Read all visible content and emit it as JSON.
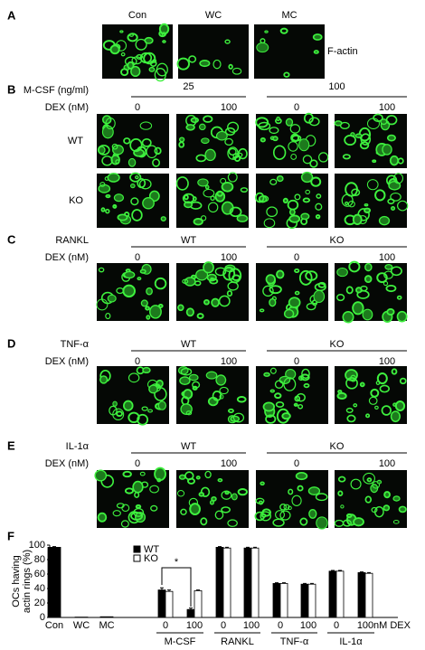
{
  "panels": [
    {
      "label": "A",
      "columns": [
        "Con",
        "WC",
        "MC"
      ],
      "row_label": "F-actin"
    },
    {
      "label": "B",
      "factor": "M-CSF (ng/ml)",
      "factor_levels": [
        "25",
        "100"
      ],
      "dex_label": "DEX (nM)",
      "dex_levels": [
        "0",
        "100",
        "0",
        "100"
      ],
      "rows": [
        "WT",
        "KO"
      ]
    },
    {
      "label": "C",
      "factor": "RANKL",
      "factor_levels": [
        "WT",
        "KO"
      ],
      "dex_label": "DEX (nM)",
      "dex_levels": [
        "0",
        "100",
        "0",
        "100"
      ]
    },
    {
      "label": "D",
      "factor": "TNF-α",
      "factor_levels": [
        "WT",
        "KO"
      ],
      "dex_label": "DEX (nM)",
      "dex_levels": [
        "0",
        "100",
        "0",
        "100"
      ]
    },
    {
      "label": "E",
      "factor": "IL-1α",
      "factor_levels": [
        "WT",
        "KO"
      ],
      "dex_label": "DEX (nM)",
      "dex_levels": [
        "0",
        "100",
        "0",
        "100"
      ]
    }
  ],
  "chart_data": {
    "type": "bar",
    "panel_label": "F",
    "y_label": [
      "OCs having",
      "actin rings (%)"
    ],
    "categories": [
      "Con",
      "WC",
      "MC",
      "0",
      "100",
      "0",
      "100",
      "0",
      "100",
      "0",
      "100"
    ],
    "groups": [
      "M-CSF",
      "RANKL",
      "TNF-α",
      "IL-1α"
    ],
    "x_unit_label": "nM DEX",
    "series": [
      {
        "name": "WT",
        "color": "#000000",
        "values": [
          97,
          0.5,
          1,
          38,
          11,
          97,
          96,
          47,
          46,
          64,
          62
        ],
        "errors": [
          1,
          0,
          0,
          3,
          2,
          1,
          1,
          1,
          1,
          1,
          1
        ]
      },
      {
        "name": "KO",
        "color": "#ffffff",
        "values": [
          null,
          null,
          null,
          36,
          37,
          96,
          96,
          47,
          46,
          64,
          61
        ],
        "errors": [
          null,
          null,
          null,
          2,
          1,
          1,
          1,
          1,
          1,
          1,
          1
        ]
      }
    ],
    "annotation": "*",
    "ylim": [
      0,
      100
    ],
    "yticks": [
      0,
      20,
      40,
      60,
      80,
      100
    ]
  }
}
